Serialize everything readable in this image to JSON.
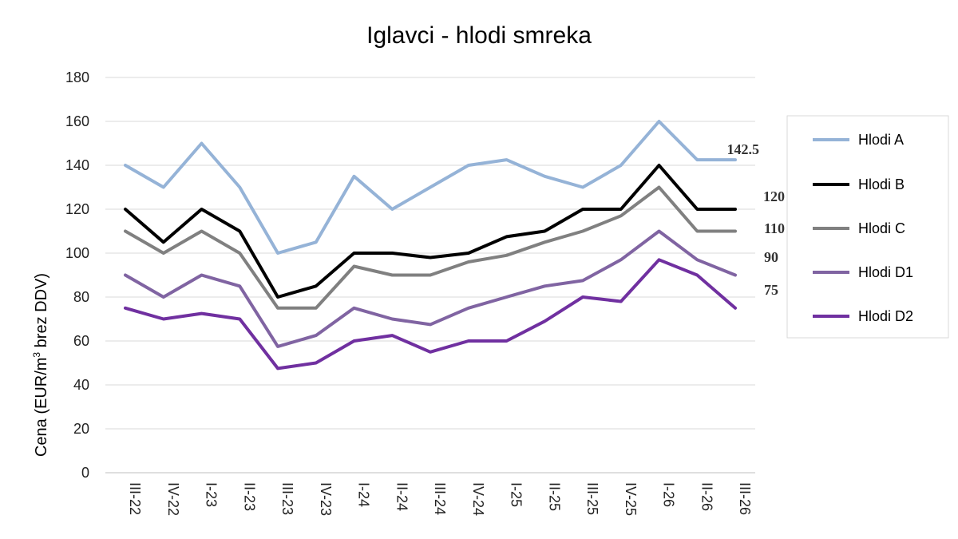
{
  "chart_data": {
    "type": "line",
    "title": "Iglavci - hlodi smreka",
    "ylabel_prefix": "Cena (EUR/m",
    "ylabel_sup": "3",
    "ylabel_suffix": " brez DDV)",
    "ylim": [
      0,
      180
    ],
    "yticks": [
      0,
      20,
      40,
      60,
      80,
      100,
      120,
      140,
      160,
      180
    ],
    "grid": true,
    "legend_position": "right",
    "categories": [
      "III-22",
      "IV-22",
      "I-23",
      "II-23",
      "III-23",
      "IV-23",
      "I-24",
      "II-24",
      "III-24",
      "IV-24",
      "I-25",
      "II-25",
      "III-25",
      "IV-25",
      "I-26",
      "II-26",
      "III-26"
    ],
    "series": [
      {
        "name": "Hlodi A",
        "color": "#95B3D7",
        "values": [
          140,
          130,
          150,
          130,
          100,
          105,
          135,
          120,
          130,
          140,
          142.5,
          135,
          130,
          140,
          160,
          142.5,
          142.5
        ]
      },
      {
        "name": "Hlodi B",
        "color": "#000000",
        "values": [
          120,
          105,
          120,
          110,
          80,
          85,
          100,
          100,
          98,
          100,
          107.5,
          110,
          120,
          120,
          140,
          120,
          120
        ]
      },
      {
        "name": "Hlodi C",
        "color": "#808080",
        "values": [
          110,
          100,
          110,
          100,
          75,
          75,
          94,
          90,
          90,
          96,
          99,
          105,
          110,
          117,
          130,
          110,
          110
        ]
      },
      {
        "name": "Hlodi D1",
        "color": "#8064A2",
        "values": [
          90,
          80,
          90,
          85,
          57.5,
          62.5,
          75,
          70,
          67.5,
          75,
          80,
          85,
          87.5,
          97,
          110,
          97,
          90
        ]
      },
      {
        "name": "Hlodi D2",
        "color": "#7030A0",
        "values": [
          75,
          70,
          72.5,
          70,
          47.5,
          50,
          60,
          62.5,
          55,
          60,
          60,
          69,
          80,
          78,
          97,
          90,
          75
        ]
      }
    ],
    "end_labels": [
      "142.5",
      "120",
      "110",
      "90",
      "75"
    ]
  }
}
